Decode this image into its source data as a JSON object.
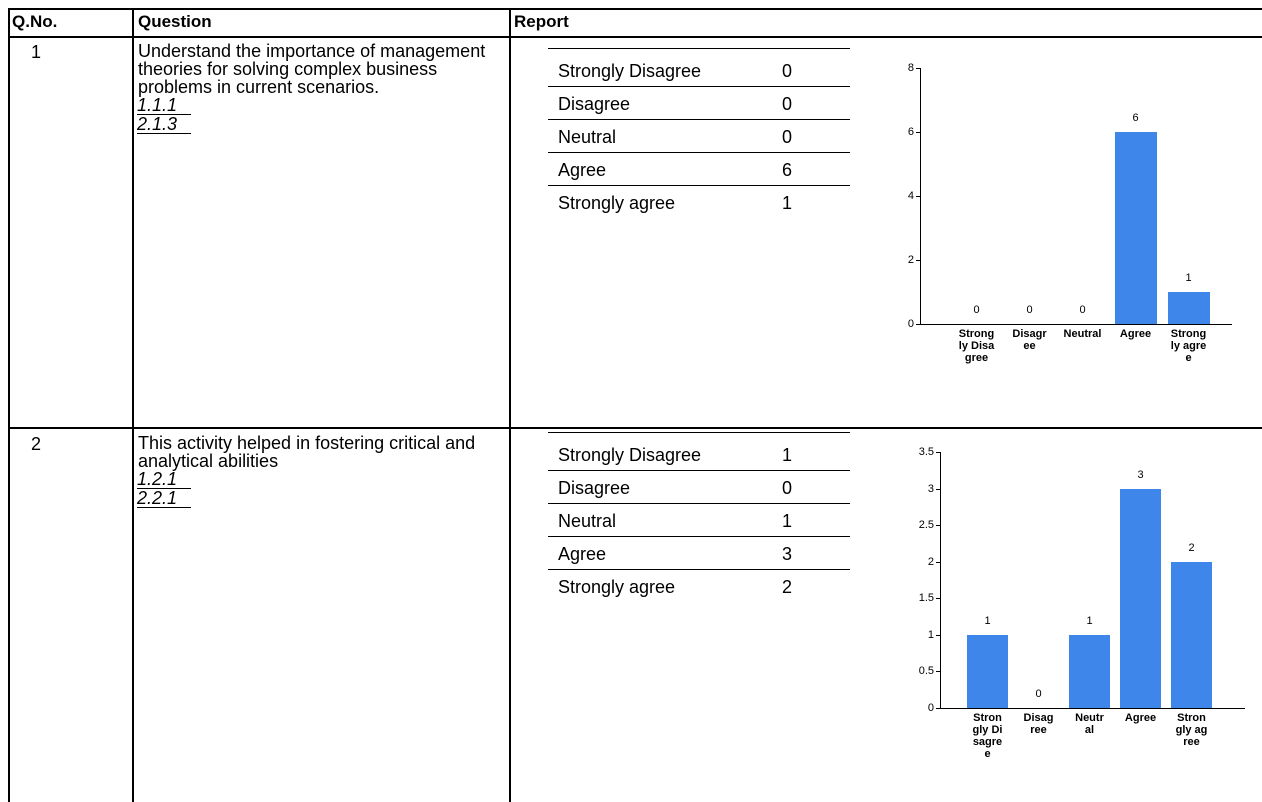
{
  "table": {
    "headers": [
      "Q.No.",
      "Question",
      "Report"
    ],
    "rows": [
      {
        "number": "1",
        "question": "Understand the importance of management theories for solving complex business problems in current scenarios.",
        "codes": [
          "1.1.1",
          "2.1.3"
        ],
        "responses": [
          {
            "label": "Strongly Disagree",
            "count": 0
          },
          {
            "label": "Disagree",
            "count": 0
          },
          {
            "label": "Neutral",
            "count": 0
          },
          {
            "label": "Agree",
            "count": 6
          },
          {
            "label": "Strongly agree",
            "count": 1
          }
        ],
        "chart": {
          "type": "bar",
          "color": "#3f86ea",
          "ylim": [
            0,
            8
          ],
          "yticks": [
            0,
            2,
            4,
            6,
            8
          ]
        }
      },
      {
        "number": "2",
        "question": "This activity helped in fostering critical and analytical abilities",
        "codes": [
          "1.2.1",
          "2.2.1"
        ],
        "responses": [
          {
            "label": "Strongly Disagree",
            "count": 1
          },
          {
            "label": "Disagree",
            "count": 0
          },
          {
            "label": "Neutral",
            "count": 1
          },
          {
            "label": "Agree",
            "count": 3
          },
          {
            "label": "Strongly agree",
            "count": 2
          }
        ],
        "chart": {
          "type": "bar",
          "color": "#3f86ea",
          "ylim": [
            0,
            3.5
          ],
          "yticks": [
            0,
            0.5,
            1,
            1.5,
            2,
            2.5,
            3,
            3.5
          ]
        }
      }
    ]
  }
}
